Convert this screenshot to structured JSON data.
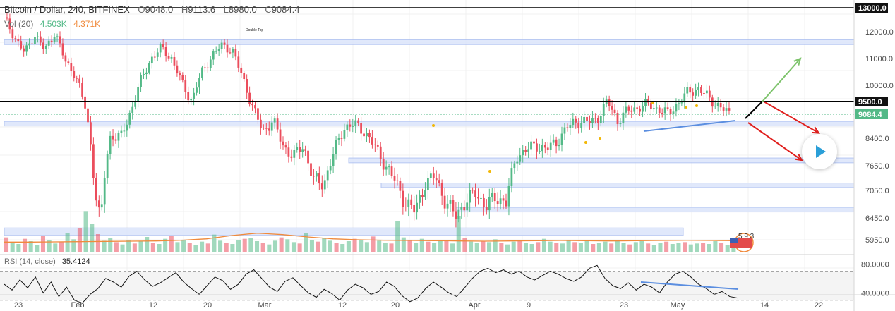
{
  "header": {
    "title": "Bitcoin / Dollar, 240, BITFINEX",
    "o_label": "O",
    "o_value": "9048.0",
    "h_label": "H",
    "h_value": "9113.6",
    "l_label": "L",
    "l_value": "8980.0",
    "c_label": "C",
    "c_value": "9084.4"
  },
  "volume_legend": {
    "label": "Vol (20)",
    "value1": "4.503K",
    "value2": "4.371K"
  },
  "rsi_legend": {
    "label": "RSI (14, close)",
    "value": "35.4124"
  },
  "annotation": "Double Top",
  "flag_label": "5 9 3",
  "colors": {
    "up": "#53b987",
    "down": "#eb4d5c",
    "zone": "#dbe5fb",
    "zone_border": "#a9bdf0",
    "trend": "#5b8ee0",
    "bull_arrow": "#7dc36b",
    "bear_arrow": "#e0201e",
    "accent": "#2a9fd8"
  },
  "chart_data": {
    "type": "candlestick",
    "timeframe": "240",
    "x_ticks": [
      "23",
      "Feb",
      "12",
      "20",
      "Mar",
      "12",
      "20",
      "Apr",
      "9",
      "23",
      "May",
      "14",
      "22"
    ],
    "y_ticks": [
      12000.0,
      11000.0,
      10000.0,
      8400.0,
      7650.0,
      7050.0,
      6450.0,
      5950.0
    ],
    "price_labels": [
      {
        "value": 13000.0,
        "style": "dark"
      },
      {
        "value": 9500.0,
        "style": "dark"
      },
      {
        "value": 9084.4,
        "style": "green"
      }
    ],
    "horizontal_lines": [
      13000,
      9500
    ],
    "current_price": 9084.4,
    "price_path": [
      [
        0,
        12600
      ],
      [
        2,
        11800
      ],
      [
        4,
        11200
      ],
      [
        6,
        11900
      ],
      [
        8,
        11300
      ],
      [
        10,
        12000
      ],
      [
        12,
        10900
      ],
      [
        14,
        10400
      ],
      [
        16,
        9300
      ],
      [
        17,
        8300
      ],
      [
        18,
        7000
      ],
      [
        19,
        6300
      ],
      [
        20,
        7700
      ],
      [
        21,
        8500
      ],
      [
        23,
        8400
      ],
      [
        25,
        9200
      ],
      [
        27,
        10200
      ],
      [
        29,
        11000
      ],
      [
        31,
        11400
      ],
      [
        33,
        11000
      ],
      [
        35,
        10100
      ],
      [
        37,
        9500
      ],
      [
        39,
        10500
      ],
      [
        41,
        11100
      ],
      [
        43,
        11500
      ],
      [
        45,
        11300
      ],
      [
        47,
        10300
      ],
      [
        49,
        9300
      ],
      [
        51,
        8600
      ],
      [
        53,
        8900
      ],
      [
        55,
        8200
      ],
      [
        57,
        7900
      ],
      [
        59,
        8200
      ],
      [
        61,
        7300
      ],
      [
        63,
        7200
      ],
      [
        65,
        8000
      ],
      [
        67,
        8700
      ],
      [
        69,
        8800
      ],
      [
        71,
        8600
      ],
      [
        73,
        8200
      ],
      [
        75,
        7700
      ],
      [
        77,
        7300
      ],
      [
        79,
        6800
      ],
      [
        81,
        6600
      ],
      [
        83,
        7200
      ],
      [
        85,
        7400
      ],
      [
        87,
        6800
      ],
      [
        89,
        6500
      ],
      [
        91,
        6800
      ],
      [
        93,
        7000
      ],
      [
        95,
        6700
      ],
      [
        97,
        6900
      ],
      [
        99,
        6800
      ],
      [
        101,
        7900
      ],
      [
        103,
        8100
      ],
      [
        105,
        8200
      ],
      [
        107,
        8100
      ],
      [
        109,
        8300
      ],
      [
        111,
        8700
      ],
      [
        113,
        8900
      ],
      [
        115,
        8850
      ],
      [
        117,
        8950
      ],
      [
        119,
        9500
      ],
      [
        121,
        8900
      ],
      [
        123,
        9200
      ],
      [
        125,
        9300
      ],
      [
        127,
        9400
      ],
      [
        129,
        9250
      ],
      [
        131,
        9100
      ],
      [
        133,
        9450
      ],
      [
        135,
        9800
      ],
      [
        137,
        9900
      ],
      [
        139,
        9600
      ],
      [
        141,
        9350
      ],
      [
        143,
        9100
      ]
    ],
    "volume": {
      "max": 9000,
      "values": [
        3200,
        2100,
        1800,
        2900,
        2400,
        1500,
        3600,
        2700,
        1900,
        2300,
        4100,
        2800,
        5200,
        8800,
        6100,
        3900,
        2500,
        3100,
        2200,
        1700,
        2600,
        1900,
        2400,
        3300,
        2000,
        1800,
        2900,
        3500,
        2200,
        2700,
        2100,
        1600,
        2300,
        1900,
        3800,
        2500,
        2100,
        1800,
        2600,
        2900,
        3100,
        2400,
        2000,
        1700,
        2500,
        3200,
        2800,
        2200,
        1900,
        4200,
        2600,
        2300,
        3000,
        2500,
        2100,
        1800,
        2400,
        2900,
        2700,
        2200,
        3400,
        2500,
        2000,
        1900,
        6700,
        3200,
        2500,
        2000,
        2900,
        2300,
        2100,
        2600,
        2400,
        1900,
        7800,
        3100,
        2300,
        2000,
        2400,
        2200,
        2800,
        2100,
        1700,
        2300,
        2600,
        2000,
        1800,
        2200,
        2900,
        2300,
        2100,
        1900,
        2500,
        2200,
        2000,
        2400,
        1800,
        2100,
        2300,
        1900,
        2600,
        2000,
        1700,
        2200,
        2400,
        1900,
        1600,
        2100,
        2300,
        1800,
        2000,
        2200,
        1700,
        1900,
        2100,
        1800,
        2400,
        2000,
        1600,
        1500
      ],
      "ma20": [
        2200,
        2200,
        2250,
        2300,
        2350,
        2400,
        2450,
        2600,
        2900,
        3600,
        4100,
        3800,
        3300,
        2900,
        2700,
        2600,
        2550,
        2500,
        2450,
        2400,
        2450,
        2500,
        2550,
        2500,
        2450,
        2500,
        2550,
        2600,
        2550,
        2500
      ]
    },
    "rsi": {
      "range": [
        20,
        90
      ],
      "y_ticks": [
        80.0,
        40.0
      ],
      "bands": [
        70,
        30
      ],
      "values": [
        52,
        44,
        58,
        47,
        62,
        40,
        55,
        35,
        48,
        30,
        26,
        38,
        46,
        60,
        55,
        48,
        63,
        70,
        58,
        49,
        54,
        61,
        68,
        55,
        46,
        38,
        50,
        62,
        57,
        45,
        52,
        66,
        72,
        60,
        48,
        42,
        56,
        61,
        50,
        40,
        34,
        45,
        39,
        30,
        44,
        52,
        47,
        38,
        42,
        55,
        49,
        36,
        28,
        33,
        46,
        55,
        48,
        40,
        35,
        47,
        60,
        70,
        74,
        68,
        72,
        66,
        70,
        62,
        58,
        64,
        70,
        66,
        60,
        56,
        62,
        74,
        78,
        60,
        50,
        46,
        54,
        44,
        52,
        48,
        40,
        55,
        66,
        70,
        62,
        52,
        46,
        38,
        42,
        35,
        33
      ]
    },
    "zones": [
      {
        "from": 11520,
        "to": 11700
      },
      {
        "from": 8750,
        "to": 8880
      },
      {
        "from": 7730,
        "to": 7860
      },
      {
        "from": 7120,
        "to": 7230
      },
      {
        "from": 6580,
        "to": 6680
      },
      {
        "from": 6050,
        "to": 6220
      }
    ],
    "projection_bullish": [
      9500,
      11000
    ],
    "projection_bearish": [
      9500,
      8550,
      7800
    ]
  }
}
